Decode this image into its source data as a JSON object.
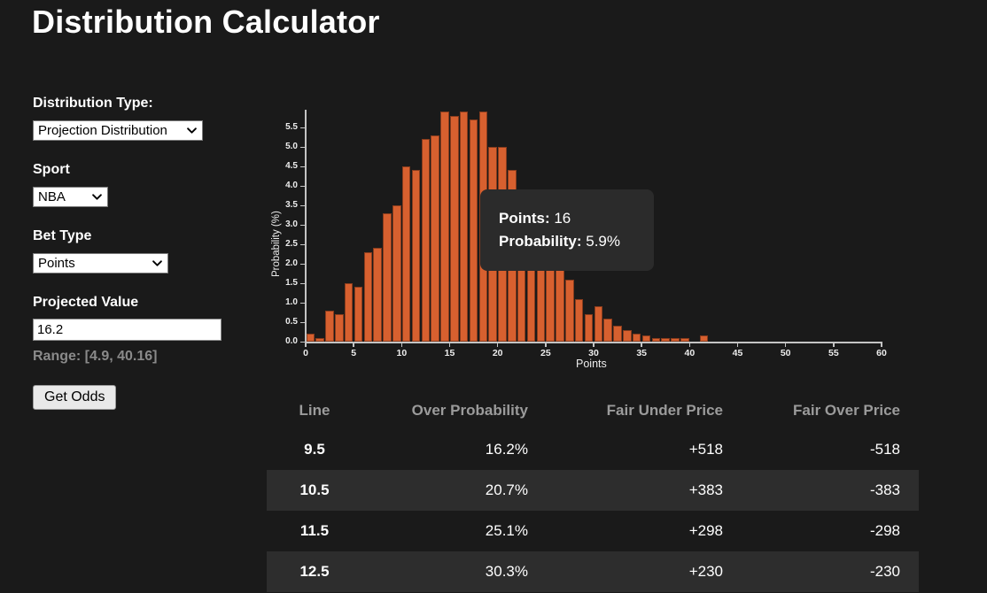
{
  "page": {
    "title": "Distribution Calculator",
    "background": "#1a1a1a"
  },
  "form": {
    "distribution_type": {
      "label": "Distribution Type:",
      "value": "Projection Distribution"
    },
    "sport": {
      "label": "Sport",
      "value": "NBA"
    },
    "bet_type": {
      "label": "Bet Type",
      "value": "Points"
    },
    "projected_value": {
      "label": "Projected Value",
      "value": "16.2",
      "range_text": "Range: [4.9, 40.16]"
    },
    "get_odds_label": "Get Odds"
  },
  "chart_data": {
    "type": "bar",
    "title": "",
    "xlabel": "Points",
    "ylabel": "Probability (%)",
    "x": [
      0,
      1,
      2,
      3,
      4,
      5,
      6,
      7,
      8,
      9,
      10,
      11,
      12,
      13,
      14,
      15,
      16,
      17,
      18,
      19,
      20,
      21,
      22,
      23,
      24,
      25,
      26,
      27,
      28,
      29,
      30,
      31,
      32,
      33,
      34,
      35,
      36,
      37,
      38,
      39,
      40,
      41
    ],
    "values": [
      0.2,
      0.1,
      0.8,
      0.7,
      1.5,
      1.4,
      2.3,
      2.4,
      3.3,
      3.5,
      4.5,
      4.4,
      5.2,
      5.3,
      5.9,
      5.8,
      5.9,
      5.7,
      5.9,
      5.0,
      5.0,
      4.4,
      3.8,
      3.2,
      2.7,
      2.2,
      1.9,
      1.6,
      1.1,
      0.7,
      0.9,
      0.6,
      0.4,
      0.3,
      0.2,
      0.15,
      0.1,
      0.1,
      0.1,
      0.1,
      0,
      0.15
    ],
    "xlim": [
      0,
      60
    ],
    "ylim": [
      0,
      5.95
    ],
    "x_ticks": [
      0,
      5,
      10,
      15,
      20,
      25,
      30,
      35,
      40,
      45,
      50,
      55,
      60
    ],
    "y_tick_labels": [
      "0.0",
      "0.5",
      "1.0",
      "1.5",
      "2.0",
      "2.5",
      "3.0",
      "3.5",
      "4.0",
      "4.5",
      "5.0",
      "5.5"
    ],
    "grid": false,
    "legend": "none",
    "bar_color": "#d7602f",
    "tooltip": {
      "line1_label": "Points:",
      "line1_value": "16",
      "line2_label": "Probability:",
      "line2_value": "5.9%",
      "background": "#2b2b2b"
    }
  },
  "table": {
    "headers": [
      "Line",
      "Over Probability",
      "Fair Under Price",
      "Fair Over Price"
    ],
    "stripe_color": "#2d2d2d",
    "rows": [
      [
        "9.5",
        "16.2%",
        "+518",
        "-518"
      ],
      [
        "10.5",
        "20.7%",
        "+383",
        "-383"
      ],
      [
        "11.5",
        "25.1%",
        "+298",
        "-298"
      ],
      [
        "12.5",
        "30.3%",
        "+230",
        "-230"
      ]
    ]
  }
}
